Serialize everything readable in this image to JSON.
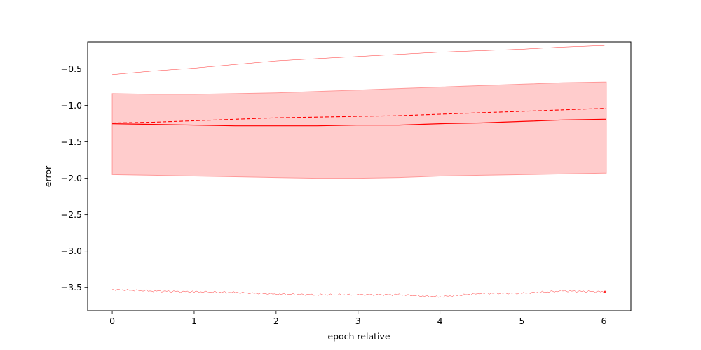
{
  "chart_data": {
    "type": "line",
    "title": "",
    "xlabel": "epoch relative",
    "ylabel": "error",
    "xlim": [
      -0.3,
      6.33
    ],
    "ylim": [
      -3.82,
      -0.13
    ],
    "xticks": [
      0,
      1,
      2,
      3,
      4,
      5,
      6
    ],
    "xtick_labels": [
      "0",
      "1",
      "2",
      "3",
      "4",
      "5",
      "6"
    ],
    "yticks": [
      -3.5,
      -3.0,
      -2.5,
      -2.0,
      -1.5,
      -1.0,
      -0.5
    ],
    "ytick_labels": [
      "−3.5",
      "−3.0",
      "−2.5",
      "−2.0",
      "−1.5",
      "−1.0",
      "−0.5"
    ],
    "grid": false,
    "legend": "none",
    "color": "#ff0000",
    "band_color": "#ff9a9a",
    "x": [
      0,
      0.5,
      1,
      1.5,
      2,
      2.5,
      3,
      3.5,
      4,
      4.5,
      5,
      5.5,
      6,
      6.03
    ],
    "series": [
      {
        "role": "mean",
        "style": "solid",
        "values": [
          -1.25,
          -1.26,
          -1.27,
          -1.28,
          -1.28,
          -1.28,
          -1.27,
          -1.27,
          -1.25,
          -1.24,
          -1.22,
          -1.2,
          -1.19,
          -1.19
        ]
      },
      {
        "role": "trend",
        "style": "dashed",
        "values": [
          -1.24,
          -1.23,
          -1.21,
          -1.19,
          -1.17,
          -1.16,
          -1.15,
          -1.14,
          -1.12,
          -1.1,
          -1.08,
          -1.06,
          -1.04,
          -1.04
        ]
      },
      {
        "role": "band-upper",
        "style": "fill",
        "values": [
          -0.84,
          -0.85,
          -0.85,
          -0.84,
          -0.83,
          -0.81,
          -0.79,
          -0.77,
          -0.75,
          -0.73,
          -0.71,
          -0.69,
          -0.68,
          -0.68
        ]
      },
      {
        "role": "band-lower",
        "style": "fill",
        "values": [
          -1.95,
          -1.96,
          -1.97,
          -1.98,
          -1.99,
          -2.0,
          -2.0,
          -1.99,
          -1.97,
          -1.96,
          -1.95,
          -1.94,
          -1.93,
          -1.93
        ]
      },
      {
        "role": "max",
        "style": "thin",
        "values": [
          -0.58,
          -0.53,
          -0.49,
          -0.44,
          -0.39,
          -0.36,
          -0.33,
          -0.3,
          -0.27,
          -0.25,
          -0.23,
          -0.2,
          -0.18,
          -0.17
        ]
      },
      {
        "role": "min",
        "style": "thin-noisy",
        "values": [
          -3.53,
          -3.55,
          -3.56,
          -3.57,
          -3.59,
          -3.6,
          -3.6,
          -3.6,
          -3.63,
          -3.58,
          -3.58,
          -3.55,
          -3.56,
          -3.56
        ]
      }
    ]
  }
}
